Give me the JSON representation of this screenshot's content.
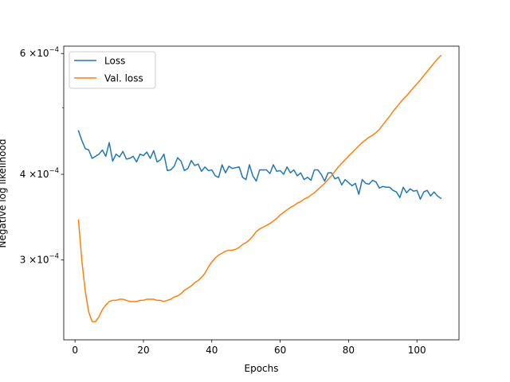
{
  "chart_data": {
    "type": "line",
    "title": "",
    "xlabel": "Epochs",
    "ylabel": "Negative log likelihood",
    "y_scale": "log",
    "xlim": [
      -3.3,
      112.3
    ],
    "ylim": [
      0.0002295,
      0.000615
    ],
    "x_ticks": [
      0,
      20,
      40,
      60,
      80,
      100
    ],
    "x_tick_labels": [
      "0",
      "20",
      "40",
      "60",
      "80",
      "100"
    ],
    "y_ticks": [
      0.0003,
      0.0004,
      0.0006
    ],
    "y_tick_labels": [
      {
        "base": "3",
        "exponent": "−4"
      },
      {
        "base": "4",
        "exponent": "−4"
      },
      {
        "base": "6",
        "exponent": "−4"
      }
    ],
    "y_tick_multiplier": "×10",
    "y_minor_tick": 0.0005,
    "grid": false,
    "legend_position": "upper-left",
    "series": [
      {
        "name": "Loss",
        "color": "#1f77b4",
        "x": [
          1,
          2,
          3,
          4,
          5,
          6,
          7,
          8,
          9,
          10,
          11,
          12,
          13,
          14,
          15,
          16,
          17,
          18,
          19,
          20,
          21,
          22,
          23,
          24,
          25,
          26,
          27,
          28,
          29,
          30,
          31,
          32,
          33,
          34,
          35,
          36,
          37,
          38,
          39,
          40,
          41,
          42,
          43,
          44,
          45,
          46,
          47,
          48,
          49,
          50,
          51,
          52,
          53,
          54,
          55,
          56,
          57,
          58,
          59,
          60,
          61,
          62,
          63,
          64,
          65,
          66,
          67,
          68,
          69,
          70,
          71,
          72,
          73,
          74,
          75,
          76,
          77,
          78,
          79,
          80,
          81,
          82,
          83,
          84,
          85,
          86,
          87,
          88,
          89,
          90,
          91,
          92,
          93,
          94,
          95,
          96,
          97,
          98,
          99,
          100,
          101,
          102,
          103,
          104,
          105,
          106,
          107
        ],
        "values": [
          0.000463,
          0.000448,
          0.000436,
          0.000434,
          0.000422,
          0.000425,
          0.000428,
          0.000434,
          0.000425,
          0.000445,
          0.000418,
          0.000428,
          0.000424,
          0.000432,
          0.000421,
          0.000422,
          0.000425,
          0.000417,
          0.000428,
          0.000426,
          0.000431,
          0.000422,
          0.000433,
          0.000417,
          0.00042,
          0.000428,
          0.000405,
          0.000406,
          0.000411,
          0.000423,
          0.000418,
          0.000405,
          0.000408,
          0.000419,
          0.000412,
          0.000414,
          0.000404,
          0.00041,
          0.000405,
          0.000406,
          0.000398,
          0.000396,
          0.000413,
          0.000402,
          0.000411,
          0.000408,
          0.000409,
          0.00041,
          0.000396,
          0.000393,
          0.000413,
          0.000398,
          0.000391,
          0.000406,
          0.000406,
          0.000406,
          0.000401,
          0.000413,
          0.000404,
          0.000405,
          0.0004,
          0.00041,
          0.000402,
          0.000406,
          0.000398,
          0.000402,
          0.000393,
          0.000396,
          0.000392,
          0.000406,
          0.000406,
          0.0004,
          0.000391,
          0.000402,
          0.000402,
          0.000394,
          0.000396,
          0.000386,
          0.000393,
          0.000389,
          0.000385,
          0.000388,
          0.000374,
          0.000393,
          0.000388,
          0.000387,
          0.000392,
          0.00039,
          0.000382,
          0.000384,
          0.000383,
          0.000383,
          0.000379,
          0.000377,
          0.00037,
          0.000383,
          0.000376,
          0.000381,
          0.000378,
          0.000379,
          0.000368,
          0.000377,
          0.000379,
          0.000372,
          0.000377,
          0.000372,
          0.000369
        ]
      },
      {
        "name": "Val. loss",
        "color": "#ff7f0e",
        "x": [
          1,
          2,
          3,
          4,
          5,
          6,
          7,
          8,
          9,
          10,
          11,
          12,
          13,
          14,
          15,
          16,
          17,
          18,
          19,
          20,
          21,
          22,
          23,
          24,
          25,
          26,
          27,
          28,
          29,
          30,
          31,
          32,
          33,
          34,
          35,
          36,
          37,
          38,
          39,
          40,
          41,
          42,
          43,
          44,
          45,
          46,
          47,
          48,
          49,
          50,
          51,
          52,
          53,
          54,
          55,
          56,
          57,
          58,
          59,
          60,
          61,
          62,
          63,
          64,
          65,
          66,
          67,
          68,
          69,
          70,
          71,
          72,
          73,
          74,
          75,
          76,
          77,
          78,
          79,
          80,
          81,
          82,
          83,
          84,
          85,
          86,
          87,
          88,
          89,
          90,
          91,
          92,
          93,
          94,
          95,
          96,
          97,
          98,
          99,
          100,
          101,
          102,
          103,
          104,
          105,
          106,
          107
        ],
        "values": [
          0.000343,
          0.000299,
          0.00027,
          0.000252,
          0.000244,
          0.000244,
          0.000248,
          0.000254,
          0.000258,
          0.000261,
          0.000262,
          0.000262,
          0.000263,
          0.000263,
          0.000262,
          0.000261,
          0.000261,
          0.000261,
          0.000262,
          0.000262,
          0.000263,
          0.000263,
          0.000263,
          0.000262,
          0.000262,
          0.000261,
          0.000262,
          0.000263,
          0.000265,
          0.000266,
          0.000268,
          0.000271,
          0.000273,
          0.000275,
          0.000278,
          0.00028,
          0.000283,
          0.000287,
          0.000293,
          0.000298,
          0.000302,
          0.000305,
          0.000307,
          0.000309,
          0.00031,
          0.00031,
          0.000311,
          0.000313,
          0.000316,
          0.000318,
          0.000321,
          0.000325,
          0.00033,
          0.000333,
          0.000335,
          0.000337,
          0.000339,
          0.000342,
          0.000345,
          0.000349,
          0.000352,
          0.000355,
          0.000358,
          0.00036,
          0.000363,
          0.000365,
          0.000368,
          0.00037,
          0.000373,
          0.000376,
          0.00038,
          0.000384,
          0.000388,
          0.000393,
          0.000398,
          0.000404,
          0.00041,
          0.000415,
          0.00042,
          0.000425,
          0.00043,
          0.000435,
          0.00044,
          0.000445,
          0.000449,
          0.000453,
          0.000456,
          0.00046,
          0.000465,
          0.000472,
          0.000479,
          0.000486,
          0.000494,
          0.000501,
          0.000508,
          0.000515,
          0.000521,
          0.000528,
          0.000535,
          0.000542,
          0.000549,
          0.000557,
          0.000565,
          0.000573,
          0.000581,
          0.000589,
          0.000596
        ]
      }
    ]
  }
}
